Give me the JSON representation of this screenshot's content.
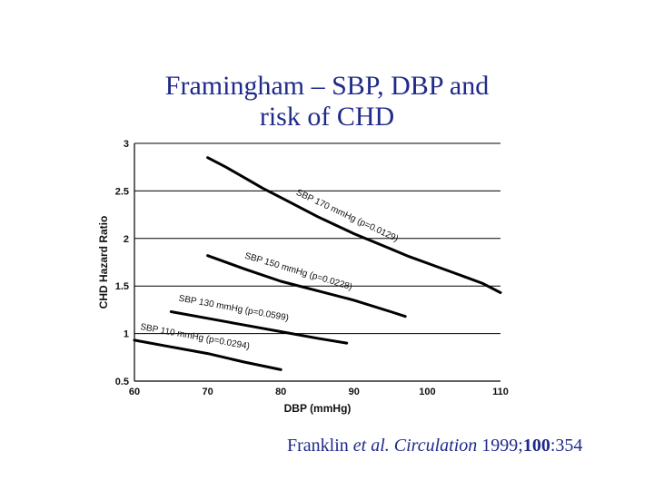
{
  "slide": {
    "title_line1": "Framingham – SBP, DBP and",
    "title_line2": "risk of CHD",
    "citation": {
      "author": "Franklin",
      "etal": " et al.",
      "sep": "  ",
      "journal": "Circulation",
      "year": " 1999;",
      "volume": "100",
      "pages": ":354"
    },
    "title_color": "#1f2a8a"
  },
  "chart_data": {
    "type": "line",
    "xlabel": "DBP (mmHg)",
    "ylabel": "CHD Hazard Ratio",
    "xlim": [
      60,
      110
    ],
    "ylim": [
      0.5,
      3
    ],
    "xticks": [
      60,
      70,
      80,
      90,
      100,
      110
    ],
    "yticks": [
      0.5,
      1,
      1.5,
      2,
      2.5,
      3
    ],
    "ytick_labels": [
      "0.5",
      "1",
      "1.5",
      "2",
      "2.5",
      "3"
    ],
    "grid": "horizontal",
    "series": [
      {
        "name": "SBP 170 mmHg (p=0.0129)",
        "x": [
          70,
          72.5,
          75,
          77.5,
          80,
          82.5,
          85,
          87.5,
          90,
          92.5,
          95,
          97.5,
          100,
          102.5,
          105,
          107.5,
          110
        ],
        "y": [
          2.85,
          2.75,
          2.64,
          2.53,
          2.43,
          2.33,
          2.23,
          2.14,
          2.05,
          1.97,
          1.89,
          1.81,
          1.74,
          1.67,
          1.6,
          1.53,
          1.43
        ]
      },
      {
        "name": "SBP 150 mmHg (p=0.0228)",
        "x": [
          70,
          75,
          80,
          85,
          90,
          95,
          97
        ],
        "y": [
          1.82,
          1.68,
          1.55,
          1.45,
          1.35,
          1.23,
          1.18
        ]
      },
      {
        "name": "SBP 130 mmHg (p=0.0599)",
        "x": [
          65,
          70,
          75,
          80,
          85,
          89
        ],
        "y": [
          1.23,
          1.16,
          1.09,
          1.02,
          0.95,
          0.9
        ]
      },
      {
        "name": "SBP 110 mmHg (p=0.0294)",
        "x": [
          60,
          65,
          70,
          75,
          80
        ],
        "y": [
          0.93,
          0.86,
          0.79,
          0.7,
          0.62
        ]
      }
    ]
  }
}
